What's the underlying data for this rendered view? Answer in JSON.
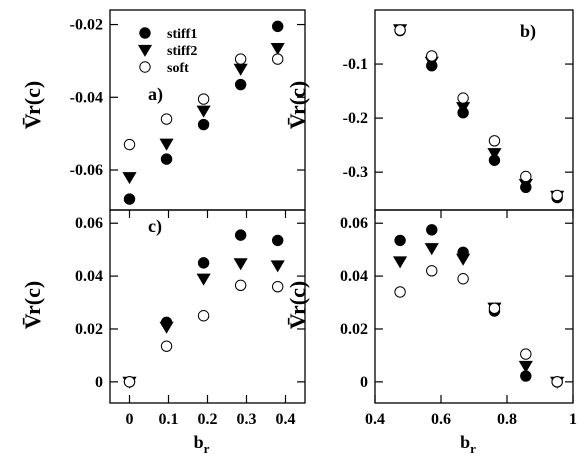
{
  "figure": {
    "series_order": [
      "stiff1",
      "stiff2",
      "soft"
    ],
    "series_markers": {
      "stiff1": "filled-circle",
      "stiff2": "filled-triangle-down",
      "soft": "open-circle"
    },
    "legend": {
      "panel": "a",
      "placement": "top-left",
      "entries": [
        "stiff1",
        "stiff2",
        "soft"
      ]
    }
  },
  "chart_data": [
    {
      "panel": "a",
      "type": "scatter",
      "panel_label": "a)",
      "ylabel": "V̄r(c)",
      "xlabel": "",
      "xlim": [
        -0.05,
        0.45
      ],
      "ylim": [
        -0.071,
        -0.016
      ],
      "xticks": [],
      "yticks": [
        -0.06,
        -0.04,
        -0.02
      ],
      "ytick_labels": [
        "-0.06",
        "-0.04",
        "-0.02"
      ],
      "series": [
        {
          "name": "stiff1",
          "x": [
            0,
            0.095,
            0.19,
            0.285,
            0.38
          ],
          "y": [
            -0.068,
            -0.057,
            -0.0475,
            -0.0365,
            -0.0205
          ]
        },
        {
          "name": "stiff2",
          "x": [
            0,
            0.095,
            0.19,
            0.285,
            0.38
          ],
          "y": [
            -0.062,
            -0.0528,
            -0.0437,
            -0.0322,
            -0.0265
          ]
        },
        {
          "name": "soft",
          "x": [
            0,
            0.095,
            0.19,
            0.285,
            0.38
          ],
          "y": [
            -0.053,
            -0.046,
            -0.0405,
            -0.0295,
            -0.0295
          ]
        }
      ]
    },
    {
      "panel": "b",
      "type": "scatter",
      "panel_label": "b)",
      "ylabel": "V̄r(c)",
      "xlabel": "",
      "xlim": [
        0.4,
        1.0
      ],
      "ylim": [
        -0.37,
        0.0
      ],
      "xticks": [],
      "yticks": [
        -0.3,
        -0.2,
        -0.1
      ],
      "ytick_labels": [
        "-0.3",
        "-0.2",
        "-0.1"
      ],
      "series": [
        {
          "name": "stiff1",
          "x": [
            0.476,
            0.572,
            0.667,
            0.762,
            0.857,
            0.952
          ],
          "y": [
            -0.038,
            -0.103,
            -0.19,
            -0.278,
            -0.328,
            -0.347
          ]
        },
        {
          "name": "stiff2",
          "x": [
            0.476,
            0.572,
            0.667,
            0.762,
            0.857,
            0.952
          ],
          "y": [
            -0.036,
            -0.096,
            -0.18,
            -0.265,
            -0.322,
            -0.344
          ]
        },
        {
          "name": "soft",
          "x": [
            0.476,
            0.572,
            0.667,
            0.762,
            0.857,
            0.952
          ],
          "y": [
            -0.037,
            -0.085,
            -0.163,
            -0.242,
            -0.308,
            -0.343
          ]
        }
      ]
    },
    {
      "panel": "c",
      "type": "scatter",
      "panel_label": "c)",
      "ylabel": "V̄r(c)",
      "xlabel": "br",
      "xlim": [
        -0.05,
        0.45
      ],
      "ylim": [
        -0.008,
        0.065
      ],
      "xticks": [
        0,
        0.1,
        0.2,
        0.3,
        0.4
      ],
      "xtick_labels": [
        "0",
        "0.1",
        "0.2",
        "0.3",
        "0.4"
      ],
      "yticks": [
        0,
        0.02,
        0.04,
        0.06
      ],
      "ytick_labels": [
        "0",
        "0.02",
        "0.04",
        "0.06"
      ],
      "series": [
        {
          "name": "stiff1",
          "x": [
            0,
            0.095,
            0.19,
            0.285,
            0.38
          ],
          "y": [
            0.0,
            0.0225,
            0.045,
            0.0555,
            0.0535
          ]
        },
        {
          "name": "stiff2",
          "x": [
            0,
            0.095,
            0.19,
            0.285,
            0.38
          ],
          "y": [
            0.0,
            0.0208,
            0.039,
            0.0448,
            0.044
          ]
        },
        {
          "name": "soft",
          "x": [
            0,
            0.095,
            0.19,
            0.285,
            0.38
          ],
          "y": [
            0.0,
            0.0135,
            0.025,
            0.0365,
            0.036
          ]
        }
      ]
    },
    {
      "panel": "d",
      "type": "scatter",
      "panel_label": "",
      "ylabel": "V̄r(c)",
      "xlabel": "br",
      "xlim": [
        0.4,
        1.0
      ],
      "ylim": [
        -0.008,
        0.065
      ],
      "xticks": [
        0.4,
        0.6,
        0.8,
        1.0
      ],
      "xtick_labels": [
        "0.4",
        "0.6",
        "0.8",
        "1"
      ],
      "yticks": [
        0,
        0.02,
        0.04,
        0.06
      ],
      "ytick_labels": [
        "0",
        "0.02",
        "0.04",
        "0.06"
      ],
      "series": [
        {
          "name": "stiff1",
          "x": [
            0.476,
            0.572,
            0.667,
            0.762,
            0.857,
            0.952
          ],
          "y": [
            0.0535,
            0.0575,
            0.049,
            0.0268,
            0.0022,
            0.0
          ]
        },
        {
          "name": "stiff2",
          "x": [
            0.476,
            0.572,
            0.667,
            0.762,
            0.857,
            0.952
          ],
          "y": [
            0.0455,
            0.0505,
            0.0465,
            0.028,
            0.006,
            0.0
          ]
        },
        {
          "name": "soft",
          "x": [
            0.476,
            0.572,
            0.667,
            0.762,
            0.857,
            0.952
          ],
          "y": [
            0.034,
            0.042,
            0.039,
            0.0278,
            0.0105,
            0.0
          ]
        }
      ]
    }
  ]
}
